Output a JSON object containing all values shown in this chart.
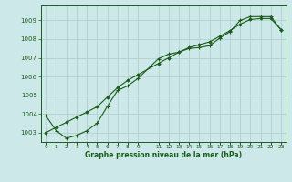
{
  "xlabel": "Graphe pression niveau de la mer (hPa)",
  "background_color": "#cde8e8",
  "grid_color": "#b0d0d0",
  "line_color": "#1a5c1a",
  "text_color": "#1a5c1a",
  "ylim": [
    1002.5,
    1009.8
  ],
  "yticks": [
    1003,
    1004,
    1005,
    1006,
    1007,
    1008,
    1009
  ],
  "xlim": [
    -0.5,
    23.5
  ],
  "xticks": [
    0,
    1,
    2,
    3,
    4,
    5,
    6,
    7,
    8,
    9,
    11,
    12,
    13,
    14,
    15,
    16,
    17,
    18,
    19,
    20,
    21,
    22,
    23
  ],
  "xtick_labels": [
    "0",
    "1",
    "2",
    "3",
    "4",
    "5",
    "6",
    "7",
    "8",
    "9",
    "11",
    "12",
    "13",
    "14",
    "15",
    "16",
    "17",
    "18",
    "19",
    "20",
    "21",
    "22",
    "23"
  ],
  "s1x": [
    0,
    1,
    2,
    3,
    4,
    5,
    6,
    7,
    8,
    9,
    11,
    12,
    13,
    14,
    15,
    16,
    17,
    18,
    19,
    20,
    21,
    22,
    23
  ],
  "s1y": [
    1003.9,
    1003.1,
    1002.7,
    1002.85,
    1003.1,
    1003.5,
    1004.4,
    1005.25,
    1005.5,
    1005.9,
    1006.95,
    1007.2,
    1007.3,
    1007.5,
    1007.55,
    1007.65,
    1008.05,
    1008.4,
    1009.0,
    1009.2,
    1009.2,
    1009.2,
    1008.5
  ],
  "s2x": [
    0,
    1,
    2,
    3,
    4,
    5,
    6,
    7,
    8,
    9,
    11,
    12,
    13,
    14,
    15,
    16,
    17,
    18,
    19,
    20,
    21,
    22,
    23
  ],
  "s2y": [
    1003.0,
    1003.28,
    1003.55,
    1003.83,
    1004.1,
    1004.38,
    1004.9,
    1005.4,
    1005.8,
    1006.1,
    1006.7,
    1007.0,
    1007.3,
    1007.55,
    1007.7,
    1007.85,
    1008.15,
    1008.45,
    1008.8,
    1009.05,
    1009.1,
    1009.1,
    1008.5
  ]
}
